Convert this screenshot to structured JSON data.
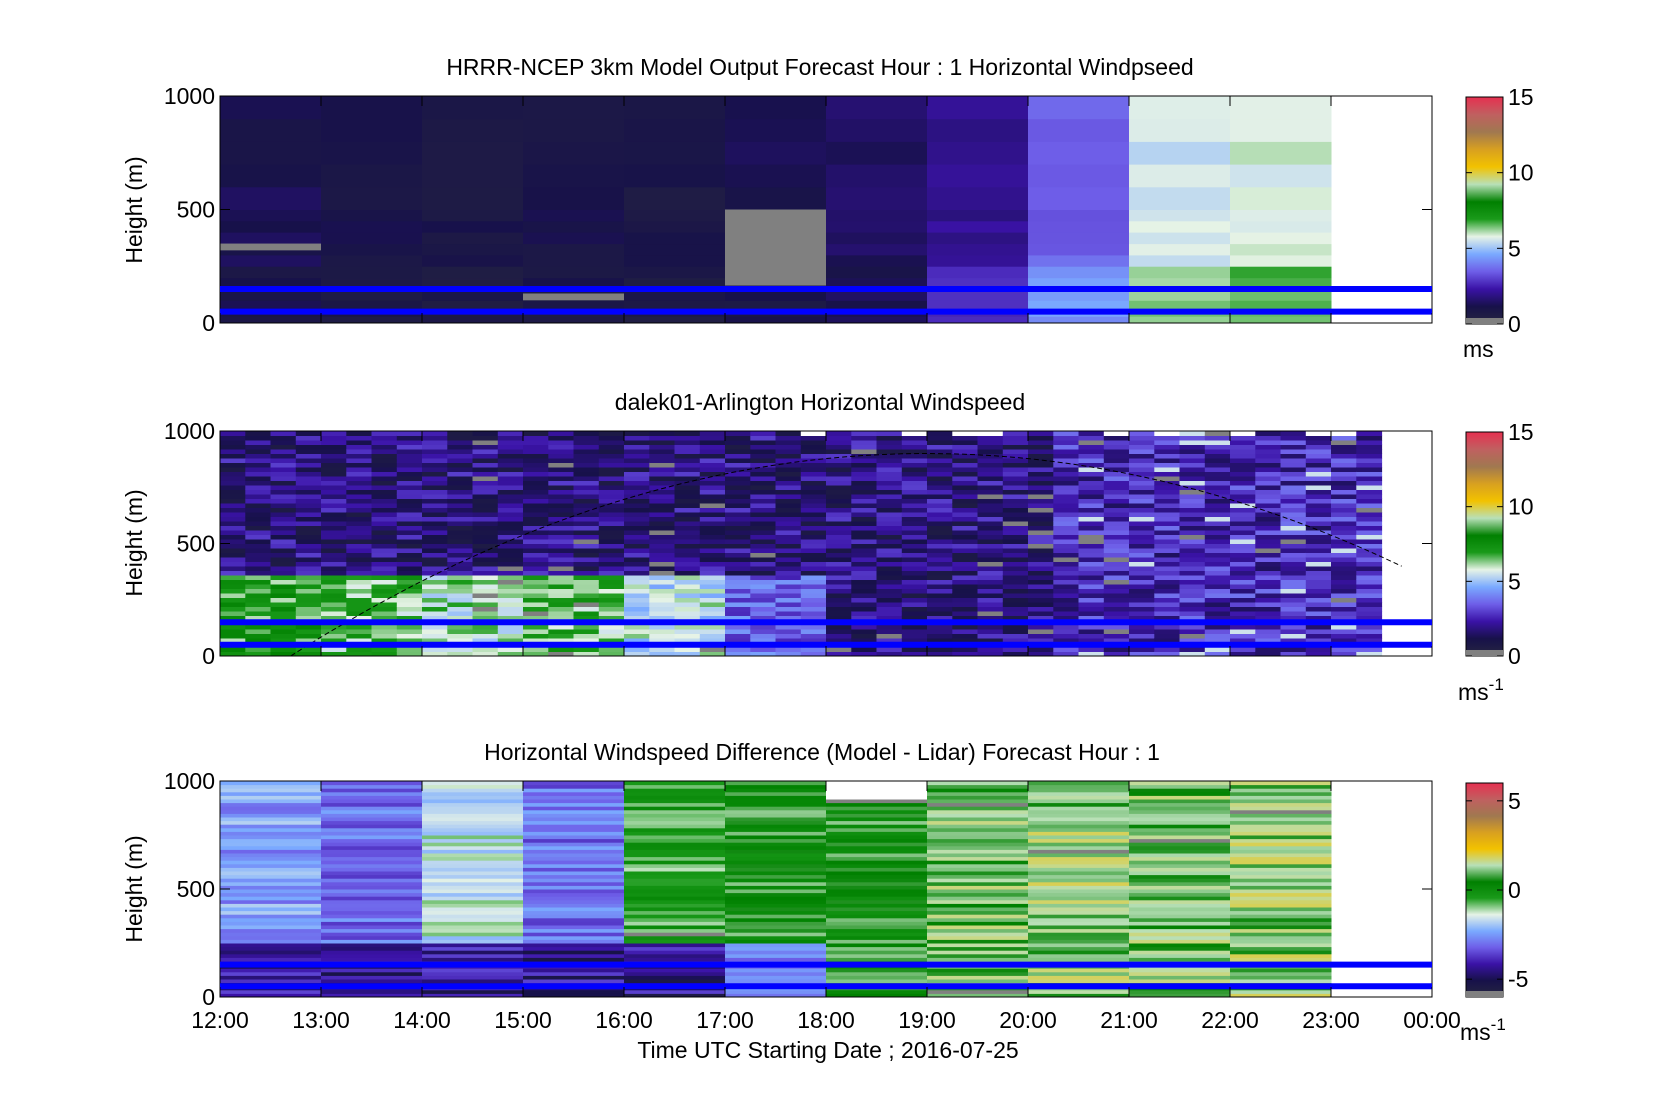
{
  "figure": {
    "xlabel": "Time UTC  Starting Date ; 2016-07-25",
    "x_ticks": [
      "12:00",
      "13:00",
      "14:00",
      "15:00",
      "16:00",
      "17:00",
      "18:00",
      "19:00",
      "20:00",
      "21:00",
      "22:00",
      "23:00",
      "00:00"
    ]
  },
  "colormap": {
    "stops": [
      "#262640",
      "#17114a",
      "#3a12a6",
      "#6e5ee8",
      "#7aaaff",
      "#e6f3e6",
      "#1a9a1a",
      "#008000",
      "#b8e0b8",
      "#f2c200",
      "#d8a020",
      "#a07850",
      "#c06060",
      "#e63050"
    ],
    "nodata": "#808080",
    "overlay_line": "#0000ff"
  },
  "chart_data": [
    {
      "type": "heatmap",
      "title": "HRRR-NCEP 3km Model Output   Forecast Hour : 1 Horizontal Windpseed",
      "xlabel": "",
      "ylabel": "Height (m)",
      "xlim": [
        0,
        12
      ],
      "ylim": [
        0,
        1000
      ],
      "y_ticks": [
        "0",
        "500",
        "1000"
      ],
      "colorbar": {
        "label": "ms",
        "ticks": [
          "0",
          "5",
          "10",
          "15"
        ],
        "range": [
          0,
          15
        ]
      },
      "hourly_speed_ms": [
        1.2,
        1.0,
        0.9,
        1.0,
        0.8,
        1.1,
        1.5,
        2.0,
        3.5,
        5.5,
        5.8
      ],
      "data_ends_hour": 11,
      "horizontal_lines_m": [
        150,
        50
      ]
    },
    {
      "type": "heatmap",
      "title": "dalek01-Arlington  Horizontal Windspeed",
      "xlabel": "",
      "ylabel": "Height (m)",
      "xlim": [
        0,
        12
      ],
      "ylim": [
        0,
        1000
      ],
      "y_ticks": [
        "0",
        "500",
        "1000"
      ],
      "colorbar": {
        "label": "ms",
        "label_sup": "-1",
        "ticks": [
          "0",
          "5",
          "10",
          "15"
        ],
        "range": [
          0,
          15
        ]
      },
      "hourly_low_level_speed_ms": [
        7.0,
        6.5,
        6.0,
        6.5,
        5.5,
        3.5,
        1.5,
        1.0,
        2.5,
        3.5,
        3.0,
        2.0
      ],
      "data_ends_hour": 11.5,
      "horizontal_lines_m": [
        150,
        50
      ]
    },
    {
      "type": "heatmap",
      "title": "Horizontal Windspeed Difference (Model - Lidar) Forecast Hour : 1",
      "xlabel": "Time UTC  Starting Date ; 2016-07-25",
      "ylabel": "Height (m)",
      "xlim": [
        0,
        12
      ],
      "ylim": [
        0,
        1000
      ],
      "y_ticks": [
        "0",
        "500",
        "1000"
      ],
      "colorbar": {
        "label": "ms",
        "label_sup": "-1",
        "ticks": [
          "-5",
          "0",
          "5"
        ],
        "range": [
          -6,
          6
        ]
      },
      "hourly_difference_ms": [
        -2.5,
        -3.0,
        -1.5,
        -3.0,
        -0.5,
        0.5,
        0.5,
        1.0,
        1.2,
        1.0,
        1.2
      ],
      "data_ends_hour": 11,
      "horizontal_lines_m": [
        150,
        50
      ]
    }
  ]
}
